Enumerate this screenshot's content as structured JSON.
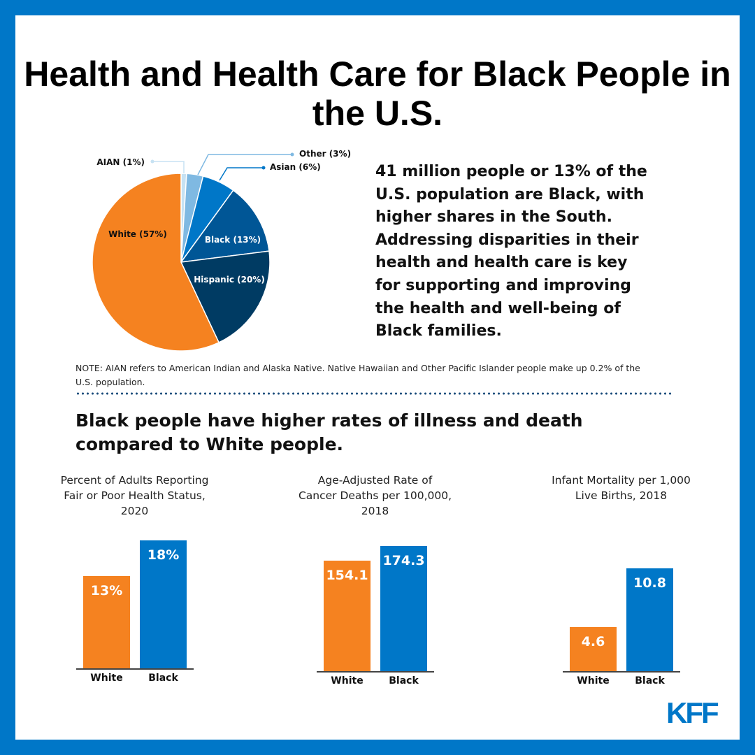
{
  "title": "Health and Health Care for Black People in the U.S.",
  "intro": "41 million people or 13% of the U.S. population are Black, with higher shares in the South. Addressing disparities in their health and health care is key for supporting and improving the health and well-being of Black families.",
  "note": "NOTE: AIAN refers to American Indian and Alaska Native. Native Hawaiian and Other Pacific Islander people make up 0.2% of the U.S. population.",
  "subheading": "Black people have higher rates of illness and death compared to White people.",
  "logo": "KFF",
  "colors": {
    "frame": "#0077C8",
    "white": "#F58220",
    "black": "#0077C8"
  },
  "chart_data": [
    {
      "type": "pie",
      "slices": [
        {
          "label": "AIAN (1%)",
          "value": 1,
          "color": "#C7E2F3"
        },
        {
          "label": "Other (3%)",
          "value": 3,
          "color": "#7FB9E2"
        },
        {
          "label": "Asian (6%)",
          "value": 6,
          "color": "#0077C8"
        },
        {
          "label": "Black (13%)",
          "value": 13,
          "color": "#005696"
        },
        {
          "label": "Hispanic (20%)",
          "value": 20,
          "color": "#003B63"
        },
        {
          "label": "White (57%)",
          "value": 57,
          "color": "#F58220"
        }
      ]
    },
    {
      "type": "bar",
      "title": "Percent of Adults Reporting Fair or Poor Health Status, 2020",
      "categories": [
        "White",
        "Black"
      ],
      "values": [
        13,
        18
      ],
      "labels": [
        "13%",
        "18%"
      ]
    },
    {
      "type": "bar",
      "title": "Age-Adjusted Rate of Cancer Deaths per 100,000, 2018",
      "categories": [
        "White",
        "Black"
      ],
      "values": [
        154.1,
        174.3
      ],
      "labels": [
        "154.1",
        "174.3"
      ]
    },
    {
      "type": "bar",
      "title": "Infant Mortality per 1,000 Live Births, 2018",
      "categories": [
        "White",
        "Black"
      ],
      "values": [
        4.6,
        10.8
      ],
      "labels": [
        "4.6",
        "10.8"
      ]
    }
  ]
}
